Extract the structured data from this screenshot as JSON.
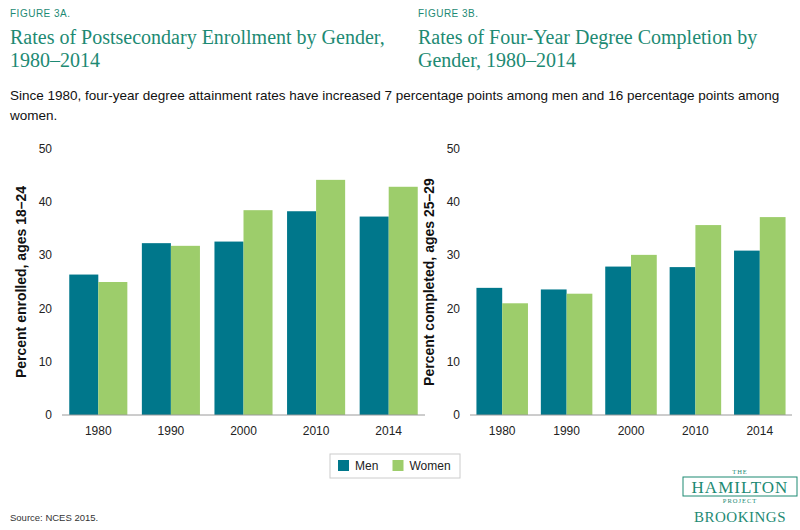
{
  "chart_data": [
    {
      "type": "bar",
      "figure": "FIGURE 3A.",
      "title": "Rates of Postsecondary Enrollment by Gender, 1980–2014",
      "y_label": "Percent enrolled, ages 18–24",
      "categories": [
        "1980",
        "1990",
        "2000",
        "2010",
        "2014"
      ],
      "series": [
        {
          "name": "Men",
          "color": "#00778b",
          "values": [
            26.4,
            32.3,
            32.6,
            38.3,
            37.3
          ]
        },
        {
          "name": "Women",
          "color": "#9dcd6b",
          "values": [
            25.0,
            31.8,
            38.5,
            44.2,
            42.9
          ]
        }
      ],
      "ylim": [
        0,
        50
      ],
      "yticks": [
        0,
        10,
        20,
        30,
        40,
        50
      ],
      "grid": false,
      "legend": "bottom"
    },
    {
      "type": "bar",
      "figure": "FIGURE 3B.",
      "title": "Rates of Four-Year Degree Completion by Gender, 1980–2014",
      "subtitle": "Since 1980, four-year degree attainment rates have increased 7 percentage points among men and 16 percentage points among women.",
      "y_label": "Percent completed, ages 25–29",
      "categories": [
        "1980",
        "1990",
        "2000",
        "2010",
        "2014"
      ],
      "series": [
        {
          "color": "#00778b",
          "values": [
            23.9,
            23.6,
            27.9,
            27.8,
            30.9
          ]
        },
        {
          "color": "#9dcd6b",
          "values": [
            21.0,
            22.8,
            30.1,
            35.7,
            37.2
          ]
        }
      ],
      "ylim": [
        0,
        50
      ],
      "yticks": [
        0,
        10,
        20,
        30,
        40,
        50
      ],
      "grid": false
    }
  ],
  "page": {
    "source": "Source: NCES 2015.",
    "logo": [
      "THE",
      "HAMILTON",
      "PROJECT",
      "BROOKINGS"
    ]
  }
}
